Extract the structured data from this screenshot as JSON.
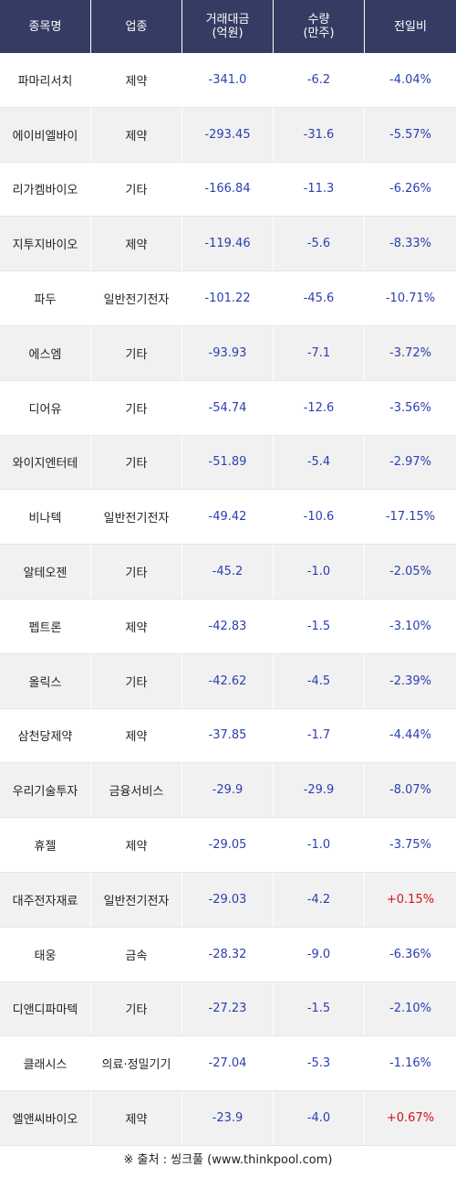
{
  "headers": {
    "name": "종목명",
    "sector": "업종",
    "amount": "거래대금\n(억원)",
    "volume": "수량\n(만주)",
    "change": "전일비"
  },
  "rows": [
    {
      "name": "파마리서치",
      "sector": "제약",
      "amount": "-341.0",
      "volume": "-6.2",
      "change": "-4.04%"
    },
    {
      "name": "에이비엘바이",
      "sector": "제약",
      "amount": "-293.45",
      "volume": "-31.6",
      "change": "-5.57%"
    },
    {
      "name": "리가켐바이오",
      "sector": "기타",
      "amount": "-166.84",
      "volume": "-11.3",
      "change": "-6.26%"
    },
    {
      "name": "지투지바이오",
      "sector": "제약",
      "amount": "-119.46",
      "volume": "-5.6",
      "change": "-8.33%"
    },
    {
      "name": "파두",
      "sector": "일반전기전자",
      "amount": "-101.22",
      "volume": "-45.6",
      "change": "-10.71%"
    },
    {
      "name": "에스엠",
      "sector": "기타",
      "amount": "-93.93",
      "volume": "-7.1",
      "change": "-3.72%"
    },
    {
      "name": "디어유",
      "sector": "기타",
      "amount": "-54.74",
      "volume": "-12.6",
      "change": "-3.56%"
    },
    {
      "name": "와이지엔터테",
      "sector": "기타",
      "amount": "-51.89",
      "volume": "-5.4",
      "change": "-2.97%"
    },
    {
      "name": "비나텍",
      "sector": "일반전기전자",
      "amount": "-49.42",
      "volume": "-10.6",
      "change": "-17.15%"
    },
    {
      "name": "알테오젠",
      "sector": "기타",
      "amount": "-45.2",
      "volume": "-1.0",
      "change": "-2.05%"
    },
    {
      "name": "펩트론",
      "sector": "제약",
      "amount": "-42.83",
      "volume": "-1.5",
      "change": "-3.10%"
    },
    {
      "name": "올릭스",
      "sector": "기타",
      "amount": "-42.62",
      "volume": "-4.5",
      "change": "-2.39%"
    },
    {
      "name": "삼천당제약",
      "sector": "제약",
      "amount": "-37.85",
      "volume": "-1.7",
      "change": "-4.44%"
    },
    {
      "name": "우리기술투자",
      "sector": "금융서비스",
      "amount": "-29.9",
      "volume": "-29.9",
      "change": "-8.07%"
    },
    {
      "name": "휴젤",
      "sector": "제약",
      "amount": "-29.05",
      "volume": "-1.0",
      "change": "-3.75%"
    },
    {
      "name": "대주전자재료",
      "sector": "일반전기전자",
      "amount": "-29.03",
      "volume": "-4.2",
      "change": "+0.15%"
    },
    {
      "name": "태웅",
      "sector": "금속",
      "amount": "-28.32",
      "volume": "-9.0",
      "change": "-6.36%"
    },
    {
      "name": "디앤디파마텍",
      "sector": "기타",
      "amount": "-27.23",
      "volume": "-1.5",
      "change": "-2.10%"
    },
    {
      "name": "클래시스",
      "sector": "의료·정밀기기",
      "amount": "-27.04",
      "volume": "-5.3",
      "change": "-1.16%"
    },
    {
      "name": "엘앤씨바이오",
      "sector": "제약",
      "amount": "-23.9",
      "volume": "-4.0",
      "change": "+0.67%"
    }
  ],
  "source": "※ 출처 : 씽크풀 (www.thinkpool.com)",
  "colors": {
    "header_bg": "#353c63",
    "negative": "#2b3fb0",
    "positive": "#d0141b",
    "alt_row": "#f1f1f1"
  }
}
